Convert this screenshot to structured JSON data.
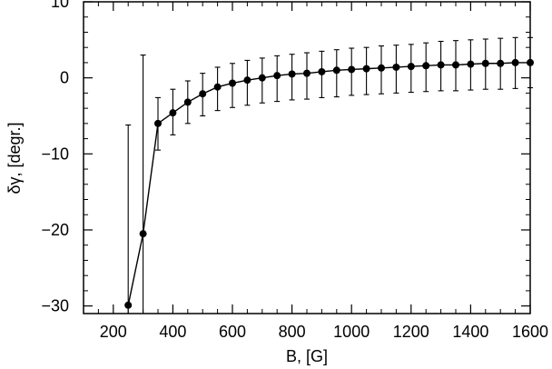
{
  "chart_data": {
    "type": "line",
    "xlabel": "B, [G]",
    "ylabel": "δγ, [degr.]",
    "xlim": [
      100,
      1600
    ],
    "ylim": [
      -31,
      10
    ],
    "x_ticks": [
      200,
      400,
      600,
      800,
      1000,
      1200,
      1400,
      1600
    ],
    "x_tick_labels": [
      "200",
      "400",
      "600",
      "800",
      "1000",
      "1200",
      "1400",
      "1600"
    ],
    "y_ticks": [
      -30,
      -20,
      -10,
      0,
      10
    ],
    "y_tick_labels": [
      "−30",
      "−20",
      "−10",
      "0",
      "10"
    ],
    "grid": false,
    "marker": "filled-circle",
    "error_bars": true,
    "series": [
      {
        "x": [
          250,
          300,
          350,
          400,
          450,
          500,
          550,
          600,
          650,
          700,
          750,
          800,
          850,
          900,
          950,
          1000,
          1050,
          1100,
          1150,
          1200,
          1250,
          1300,
          1350,
          1400,
          1450,
          1500,
          1550,
          1600
        ],
        "y": [
          -29.9,
          -20.5,
          -6.0,
          -4.6,
          -3.2,
          -2.1,
          -1.2,
          -0.7,
          -0.3,
          0.0,
          0.3,
          0.5,
          0.6,
          0.8,
          1.0,
          1.1,
          1.2,
          1.3,
          1.4,
          1.5,
          1.6,
          1.7,
          1.7,
          1.8,
          1.9,
          1.9,
          2.0,
          2.0
        ],
        "y_low": [
          -31,
          -31,
          -9.5,
          -7.5,
          -6.0,
          -5.0,
          -4.3,
          -3.9,
          -3.6,
          -3.3,
          -3.1,
          -2.9,
          -2.8,
          -2.6,
          -2.5,
          -2.3,
          -2.2,
          -2.1,
          -2.0,
          -1.9,
          -1.8,
          -1.7,
          -1.7,
          -1.6,
          -1.5,
          -1.5,
          -1.4,
          -1.3
        ],
        "y_high": [
          -6.2,
          3.0,
          -2.6,
          -1.5,
          -0.4,
          0.6,
          1.4,
          1.9,
          2.3,
          2.6,
          2.9,
          3.1,
          3.3,
          3.5,
          3.7,
          3.9,
          4.0,
          4.2,
          4.3,
          4.4,
          4.6,
          4.8,
          4.9,
          5.0,
          5.1,
          5.2,
          5.3,
          5.3
        ]
      }
    ]
  }
}
